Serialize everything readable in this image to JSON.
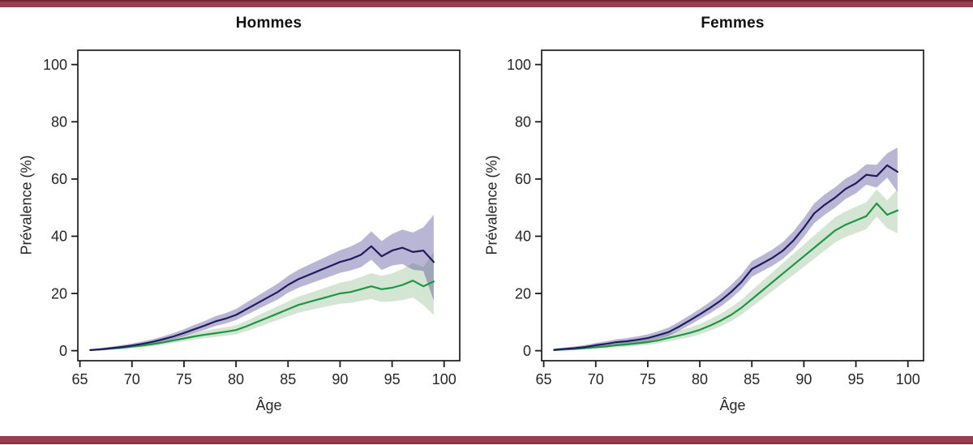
{
  "page": {
    "background": "#ffffff",
    "top_bar_color": "#9d3c50",
    "bottom_bar_color": "#9d3c50"
  },
  "chart_data": [
    {
      "type": "line",
      "title": "Hommes",
      "xlabel": "Âge",
      "ylabel": "Prévalence (%)",
      "x_ticks": [
        65,
        70,
        75,
        80,
        85,
        90,
        95,
        100
      ],
      "y_ticks": [
        0,
        20,
        40,
        60,
        80,
        100
      ],
      "xlim": [
        64.8,
        101.5
      ],
      "ylim": [
        -3.5,
        105.0
      ],
      "grid": false,
      "legend": "none",
      "x": [
        66,
        67,
        68,
        69,
        70,
        71,
        72,
        73,
        74,
        75,
        76,
        77,
        78,
        79,
        80,
        81,
        82,
        83,
        84,
        85,
        86,
        87,
        88,
        89,
        90,
        91,
        92,
        93,
        94,
        95,
        96,
        97,
        98,
        99
      ],
      "series": [
        {
          "name": "navy",
          "color": "#211c5e",
          "band_color": "rgba(70,62,145,0.38)",
          "values": [
            0.2,
            0.5,
            0.9,
            1.3,
            1.8,
            2.4,
            3.1,
            4.0,
            5.0,
            6.2,
            7.5,
            8.8,
            10.2,
            11.2,
            12.5,
            14.5,
            16.5,
            18.5,
            20.5,
            23.0,
            25.0,
            26.5,
            28.0,
            29.5,
            31.0,
            32.0,
            33.5,
            36.5,
            33.0,
            35.0,
            36.0,
            34.5,
            35.0,
            31.0
          ],
          "ci_low": [
            0.1,
            0.2,
            0.5,
            0.8,
            1.2,
            1.7,
            2.3,
            3.1,
            4.0,
            5.0,
            6.2,
            7.3,
            8.6,
            9.5,
            10.7,
            12.5,
            14.3,
            16.1,
            17.9,
            20.2,
            22.0,
            23.3,
            24.6,
            25.9,
            27.2,
            28.0,
            29.2,
            31.8,
            28.2,
            29.8,
            30.3,
            28.3,
            27.9,
            17.5
          ],
          "ci_high": [
            0.5,
            0.9,
            1.4,
            1.9,
            2.5,
            3.2,
            4.0,
            5.0,
            6.2,
            7.5,
            9.0,
            10.4,
            12.0,
            13.1,
            14.6,
            16.8,
            19.0,
            21.2,
            23.4,
            26.1,
            28.3,
            30.0,
            31.7,
            33.4,
            35.1,
            36.4,
            38.2,
            41.7,
            38.3,
            40.8,
            42.3,
            41.3,
            43.1,
            47.5
          ]
        },
        {
          "name": "green",
          "color": "#1e9646",
          "band_color": "rgba(45,125,35,0.2)",
          "values": [
            0.2,
            0.4,
            0.7,
            1.0,
            1.4,
            1.8,
            2.3,
            2.9,
            3.6,
            4.3,
            5.0,
            5.6,
            6.1,
            6.6,
            7.2,
            8.5,
            10.0,
            11.5,
            13.0,
            14.5,
            16.0,
            17.0,
            18.0,
            19.0,
            20.0,
            20.5,
            21.5,
            22.5,
            21.5,
            22.0,
            23.0,
            24.5,
            22.5,
            24.2
          ],
          "ci_low": [
            0.1,
            0.2,
            0.4,
            0.6,
            0.9,
            1.2,
            1.6,
            2.1,
            2.7,
            3.3,
            3.9,
            4.4,
            4.8,
            5.2,
            5.7,
            6.8,
            8.1,
            9.4,
            10.7,
            12.0,
            13.3,
            14.1,
            14.9,
            15.7,
            16.4,
            16.7,
            17.4,
            18.1,
            17.0,
            17.2,
            17.7,
            18.6,
            16.0,
            12.5
          ],
          "ci_high": [
            0.5,
            0.8,
            1.1,
            1.5,
            2.0,
            2.5,
            3.1,
            3.8,
            4.6,
            5.5,
            6.3,
            7.0,
            7.6,
            8.2,
            8.9,
            10.4,
            12.1,
            13.8,
            15.5,
            17.2,
            18.9,
            20.1,
            21.3,
            22.5,
            23.8,
            24.5,
            25.8,
            27.1,
            26.2,
            27.0,
            28.5,
            30.6,
            29.3,
            34.5
          ]
        }
      ]
    },
    {
      "type": "line",
      "title": "Femmes",
      "xlabel": "Âge",
      "ylabel": "Prévalence (%)",
      "x_ticks": [
        65,
        70,
        75,
        80,
        85,
        90,
        95,
        100
      ],
      "y_ticks": [
        0,
        20,
        40,
        60,
        80,
        100
      ],
      "xlim": [
        64.8,
        101.5
      ],
      "ylim": [
        -3.5,
        105.0
      ],
      "grid": false,
      "legend": "none",
      "x": [
        66,
        67,
        68,
        69,
        70,
        71,
        72,
        73,
        74,
        75,
        76,
        77,
        78,
        79,
        80,
        81,
        82,
        83,
        84,
        85,
        86,
        87,
        88,
        89,
        90,
        91,
        92,
        93,
        94,
        95,
        96,
        97,
        98,
        99
      ],
      "series": [
        {
          "name": "navy",
          "color": "#211c5e",
          "band_color": "rgba(70,62,145,0.38)",
          "values": [
            0.3,
            0.6,
            0.9,
            1.3,
            1.9,
            2.4,
            3.0,
            3.3,
            3.8,
            4.4,
            5.4,
            6.5,
            8.4,
            10.5,
            12.7,
            15.0,
            17.5,
            20.5,
            24.0,
            28.5,
            30.5,
            32.5,
            35.0,
            38.5,
            43.0,
            48.0,
            51.0,
            53.5,
            56.5,
            58.5,
            61.5,
            61.0,
            64.8,
            62.5
          ],
          "ci_low": [
            0.1,
            0.3,
            0.5,
            0.8,
            1.2,
            1.6,
            2.1,
            2.3,
            2.7,
            3.2,
            4.1,
            5.1,
            6.9,
            8.9,
            11.0,
            13.1,
            15.4,
            18.2,
            21.5,
            25.8,
            27.8,
            29.7,
            32.1,
            35.4,
            39.8,
            44.6,
            47.5,
            50.0,
            53.0,
            55.0,
            58.0,
            57.0,
            60.5,
            55.5
          ],
          "ci_high": [
            0.7,
            1.1,
            1.5,
            2.0,
            2.7,
            3.3,
            4.0,
            4.4,
            5.0,
            5.7,
            6.8,
            8.1,
            10.1,
            12.3,
            14.6,
            17.1,
            19.8,
            23.0,
            26.6,
            31.3,
            33.3,
            35.4,
            38.0,
            41.7,
            46.3,
            51.5,
            54.6,
            57.1,
            60.1,
            62.1,
            65.1,
            65.0,
            69.0,
            71.0
          ]
        },
        {
          "name": "green",
          "color": "#1e9646",
          "band_color": "rgba(45,125,35,0.2)",
          "values": [
            0.2,
            0.4,
            0.6,
            0.9,
            1.2,
            1.5,
            1.9,
            2.2,
            2.6,
            3.0,
            3.6,
            4.5,
            5.3,
            6.2,
            7.3,
            8.8,
            10.5,
            12.5,
            15.0,
            18.0,
            21.0,
            24.0,
            27.0,
            30.0,
            33.0,
            36.0,
            39.0,
            42.0,
            44.0,
            45.5,
            47.0,
            51.5,
            47.5,
            49.0
          ],
          "ci_low": [
            0.1,
            0.2,
            0.3,
            0.5,
            0.7,
            0.9,
            1.2,
            1.4,
            1.7,
            2.0,
            2.5,
            3.2,
            3.9,
            4.7,
            5.7,
            7.0,
            8.5,
            10.3,
            12.6,
            15.3,
            18.1,
            20.9,
            23.7,
            26.5,
            29.3,
            32.1,
            35.0,
            37.8,
            39.7,
            41.1,
            42.5,
            46.8,
            42.8,
            41.0
          ],
          "ci_high": [
            0.6,
            0.9,
            1.2,
            1.6,
            2.0,
            2.4,
            2.9,
            3.3,
            3.8,
            4.3,
            5.0,
            6.1,
            7.0,
            8.1,
            9.3,
            11.0,
            12.9,
            15.1,
            17.8,
            21.1,
            24.3,
            27.5,
            30.7,
            33.9,
            37.1,
            40.3,
            43.4,
            46.6,
            48.7,
            50.3,
            51.9,
            56.4,
            52.5,
            56.5
          ]
        }
      ]
    }
  ]
}
